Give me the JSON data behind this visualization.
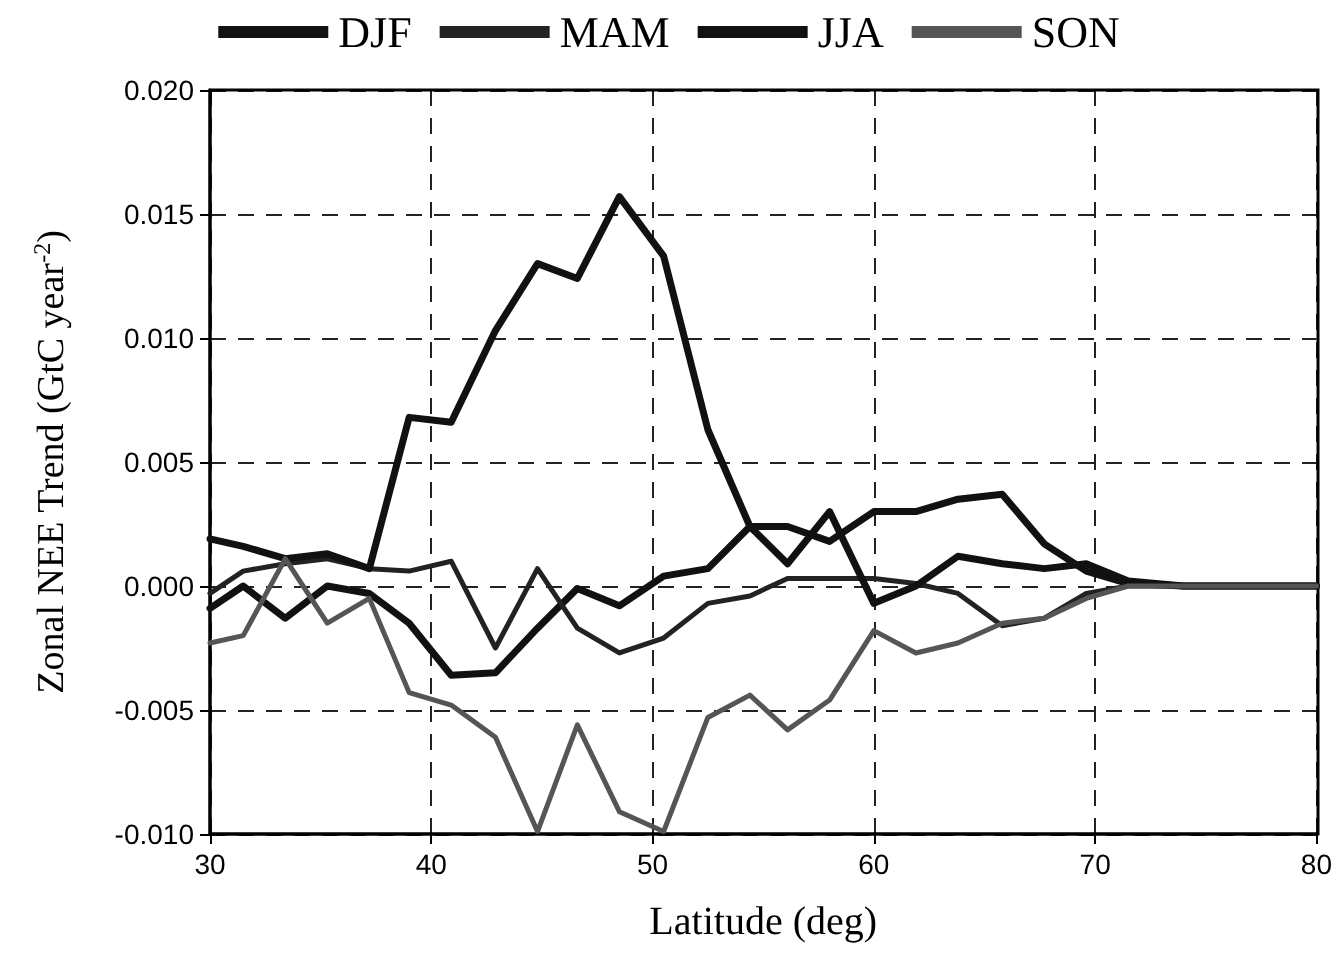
{
  "chart_data": {
    "type": "line",
    "xlabel": "Latitude (deg)",
    "ylabel": "Zonal NEE Trend (GtC year$^{-2}$)",
    "x": [
      30,
      31.5,
      33.4,
      35.3,
      37.2,
      39.0,
      40.9,
      42.9,
      44.8,
      46.6,
      48.5,
      50.5,
      52.5,
      54.4,
      56.1,
      58,
      60,
      61.9,
      63.8,
      65.8,
      67.7,
      69.6,
      71.5,
      74,
      77,
      80
    ],
    "series": [
      {
        "name": "DJF",
        "color": "#111111",
        "values": [
          -0.0009,
          0.0,
          -0.0013,
          0.0,
          -0.0003,
          -0.0015,
          -0.0036,
          -0.0035,
          -0.0017,
          -0.0001,
          -0.0008,
          0.0004,
          0.0007,
          0.0024,
          0.0024,
          0.0018,
          0.003,
          0.003,
          0.0035,
          0.0037,
          0.0017,
          0.0006,
          0.0001,
          0,
          0,
          0
        ]
      },
      {
        "name": "MAM",
        "color": "#222222",
        "values": [
          -0.0003,
          0.0006,
          0.0009,
          0.0011,
          0.0007,
          0.0006,
          0.001,
          -0.0025,
          0.0007,
          -0.0017,
          -0.0027,
          -0.0021,
          -0.0007,
          -0.0004,
          0.0003,
          0.0003,
          0.0003,
          0.0001,
          -0.0003,
          -0.0016,
          -0.0013,
          -0.0003,
          0,
          0,
          0,
          0
        ]
      },
      {
        "name": "JJA",
        "color": "#111111",
        "values": [
          0.0019,
          0.0016,
          0.0011,
          0.0013,
          0.0007,
          0.0068,
          0.0066,
          0.0103,
          0.013,
          0.0124,
          0.0157,
          0.0133,
          0.0063,
          0.0024,
          0.0009,
          0.003,
          -0.0007,
          0.0,
          0.0012,
          0.0009,
          0.0007,
          0.0009,
          0.0002,
          0,
          0,
          0
        ]
      },
      {
        "name": "SON",
        "color": "#555555",
        "values": [
          -0.0023,
          -0.002,
          0.0011,
          -0.0015,
          -0.0005,
          -0.0043,
          -0.0048,
          -0.0061,
          -0.0099,
          -0.0056,
          -0.0091,
          -0.0099,
          -0.0053,
          -0.0044,
          -0.0058,
          -0.0046,
          -0.0018,
          -0.0027,
          -0.0023,
          -0.0015,
          -0.0013,
          -0.0005,
          0,
          0,
          0,
          0
        ]
      }
    ],
    "xlim": [
      30,
      80
    ],
    "xticks": [
      30,
      40,
      50,
      60,
      70,
      80
    ],
    "ylim": [
      -0.01,
      0.02
    ],
    "yticks": [
      {
        "value": -0.01,
        "label": "-0.010"
      },
      {
        "value": -0.005,
        "label": "-0.005"
      },
      {
        "value": 0,
        "label": "0.000"
      },
      {
        "value": 0.005,
        "label": "0.005"
      },
      {
        "value": 0.01,
        "label": "0.010"
      },
      {
        "value": 0.015,
        "label": "0.015"
      },
      {
        "value": 0.02,
        "label": "0.020"
      }
    ],
    "grid": true,
    "legend": "top",
    "marker": "none",
    "line_style": "solid"
  }
}
